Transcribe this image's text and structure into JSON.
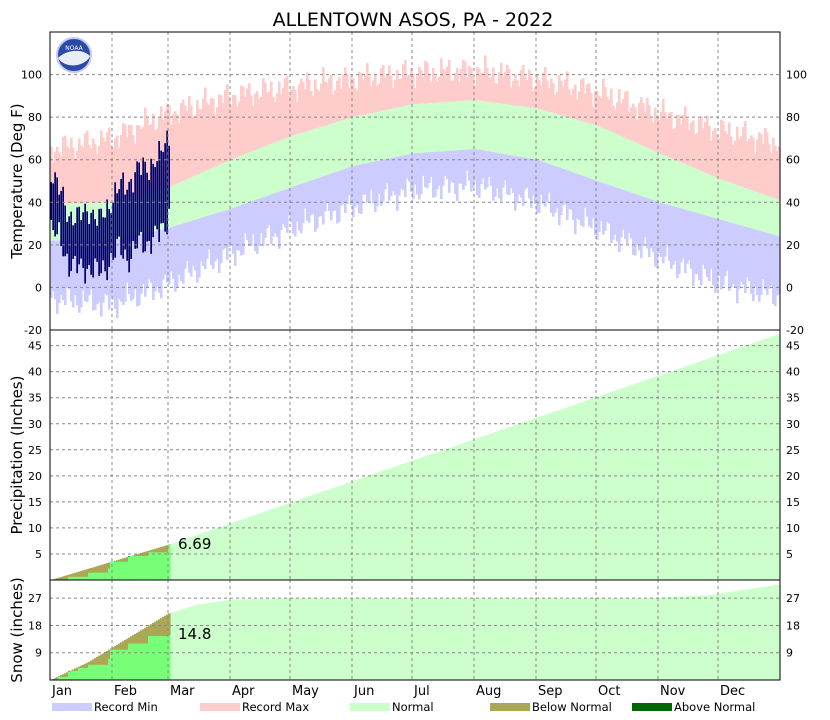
{
  "title": "ALLENTOWN       ASOS, PA - 2022",
  "logo_text": "NOAA",
  "months": [
    "Jan",
    "Feb",
    "Mar",
    "Apr",
    "May",
    "Jun",
    "Jul",
    "Aug",
    "Sep",
    "Oct",
    "Nov",
    "Dec"
  ],
  "legend": [
    {
      "label": "Record Min",
      "color": "#ccccff"
    },
    {
      "label": "Record Max",
      "color": "#ffcccc"
    },
    {
      "label": "Normal",
      "color": "#ccffcc"
    },
    {
      "label": "Below Normal",
      "color": "#aaa855"
    },
    {
      "label": "Above Normal",
      "color": "#006600"
    }
  ],
  "colors": {
    "record_min": "#ccccff",
    "record_max": "#ffcccc",
    "normal": "#ccffcc",
    "below_normal": "#aaa855",
    "above_normal": "#006600",
    "observed_temp": "#000066",
    "observed_precip": "#77ff77"
  },
  "chart_data": [
    {
      "type": "area",
      "name": "temperature",
      "ylabel": "Temperature (Deg F)",
      "ylim": [
        -20,
        120
      ],
      "yticks": [
        -20,
        0,
        20,
        40,
        60,
        80,
        100
      ],
      "grid": true,
      "x_axis": "day of year 2022 (Jan 1 - Dec 31)",
      "normal_high_by_day": [
        [
          1,
          39
        ],
        [
          32,
          40
        ],
        [
          60,
          47
        ],
        [
          91,
          60
        ],
        [
          121,
          71
        ],
        [
          152,
          80
        ],
        [
          182,
          86
        ],
        [
          213,
          88
        ],
        [
          244,
          84
        ],
        [
          274,
          76
        ],
        [
          305,
          63
        ],
        [
          335,
          51
        ],
        [
          365,
          41
        ]
      ],
      "normal_low_by_day": [
        [
          1,
          22
        ],
        [
          32,
          22
        ],
        [
          60,
          28
        ],
        [
          91,
          37
        ],
        [
          121,
          47
        ],
        [
          152,
          57
        ],
        [
          182,
          63
        ],
        [
          213,
          65
        ],
        [
          244,
          60
        ],
        [
          274,
          50
        ],
        [
          305,
          40
        ],
        [
          335,
          32
        ],
        [
          365,
          24
        ]
      ],
      "record_max_by_day": [
        [
          1,
          65
        ],
        [
          32,
          70
        ],
        [
          60,
          82
        ],
        [
          91,
          90
        ],
        [
          121,
          94
        ],
        [
          152,
          98
        ],
        [
          182,
          101
        ],
        [
          213,
          102
        ],
        [
          244,
          98
        ],
        [
          274,
          92
        ],
        [
          305,
          82
        ],
        [
          335,
          74
        ],
        [
          365,
          68
        ]
      ],
      "record_min_by_day": [
        [
          1,
          -5
        ],
        [
          32,
          -8
        ],
        [
          60,
          2
        ],
        [
          91,
          16
        ],
        [
          121,
          28
        ],
        [
          152,
          38
        ],
        [
          182,
          46
        ],
        [
          213,
          48
        ],
        [
          244,
          40
        ],
        [
          274,
          28
        ],
        [
          305,
          14
        ],
        [
          335,
          2
        ],
        [
          365,
          -4
        ]
      ],
      "observed_through_day": 60,
      "observed_high_sample": [
        [
          1,
          56
        ],
        [
          5,
          45
        ],
        [
          10,
          35
        ],
        [
          15,
          32
        ],
        [
          20,
          38
        ],
        [
          25,
          30
        ],
        [
          30,
          40
        ],
        [
          35,
          46
        ],
        [
          40,
          50
        ],
        [
          45,
          55
        ],
        [
          50,
          58
        ],
        [
          55,
          60
        ],
        [
          58,
          68
        ],
        [
          60,
          73
        ]
      ],
      "observed_low_sample": [
        [
          1,
          28
        ],
        [
          5,
          22
        ],
        [
          10,
          12
        ],
        [
          15,
          8
        ],
        [
          20,
          10
        ],
        [
          25,
          6
        ],
        [
          30,
          12
        ],
        [
          35,
          18
        ],
        [
          40,
          14
        ],
        [
          45,
          20
        ],
        [
          50,
          22
        ],
        [
          55,
          24
        ],
        [
          58,
          30
        ],
        [
          60,
          35
        ]
      ]
    },
    {
      "type": "area",
      "name": "precipitation",
      "ylabel": "Precipitation (Inches)",
      "ylim": [
        0,
        48
      ],
      "yticks": [
        5,
        10,
        15,
        20,
        25,
        30,
        35,
        40,
        45
      ],
      "grid": true,
      "normal_cumulative_by_day": [
        [
          1,
          0
        ],
        [
          60,
          6.8
        ],
        [
          365,
          47.2
        ]
      ],
      "observed_cumulative_by_day": [
        [
          1,
          0
        ],
        [
          10,
          0.6
        ],
        [
          20,
          1.4
        ],
        [
          30,
          2.2
        ],
        [
          31,
          3.5
        ],
        [
          40,
          4.6
        ],
        [
          50,
          5.3
        ],
        [
          60,
          6.69
        ]
      ],
      "observed_total": 6.69,
      "observed_total_label": "6.69"
    },
    {
      "type": "area",
      "name": "snow",
      "ylabel": "Snow (inches)",
      "ylim": [
        0,
        33
      ],
      "yticks": [
        9,
        18,
        27
      ],
      "grid": true,
      "normal_cumulative_by_day": [
        [
          1,
          0
        ],
        [
          20,
          6
        ],
        [
          40,
          14
        ],
        [
          60,
          22
        ],
        [
          75,
          25
        ],
        [
          91,
          26.5
        ],
        [
          120,
          27
        ],
        [
          300,
          27
        ],
        [
          330,
          28
        ],
        [
          365,
          31.5
        ]
      ],
      "observed_cumulative_by_day": [
        [
          1,
          0
        ],
        [
          5,
          1
        ],
        [
          10,
          3
        ],
        [
          15,
          4
        ],
        [
          20,
          5
        ],
        [
          30,
          7
        ],
        [
          31,
          10
        ],
        [
          40,
          12
        ],
        [
          50,
          14.5
        ],
        [
          60,
          14.8
        ]
      ],
      "observed_total": 14.8,
      "observed_total_label": "14.8"
    }
  ]
}
